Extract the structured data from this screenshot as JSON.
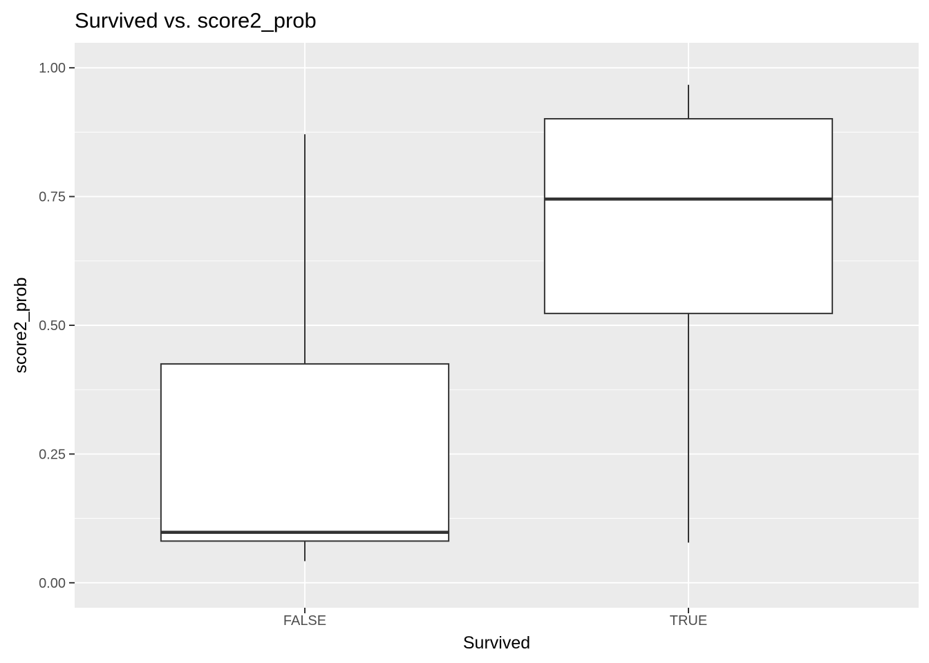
{
  "chart_data": {
    "type": "boxplot",
    "title": "Survived vs. score2_prob",
    "xlabel": "Survived",
    "ylabel": "score2_prob",
    "categories": [
      "FALSE",
      "TRUE"
    ],
    "boxes": [
      {
        "category": "FALSE",
        "whisker_low": 0.042,
        "q1": 0.081,
        "median": 0.098,
        "q3": 0.425,
        "whisker_high": 0.871
      },
      {
        "category": "TRUE",
        "whisker_low": 0.078,
        "q1": 0.523,
        "median": 0.745,
        "q3": 0.901,
        "whisker_high": 0.967
      }
    ],
    "ylim": [
      -0.0485,
      1.0485
    ],
    "y_ticks": [
      0,
      0.25,
      0.5,
      0.75,
      1
    ],
    "y_tick_labels": [
      "0.00",
      "0.25",
      "0.50",
      "0.75",
      "1.00"
    ],
    "grid": true,
    "colors": {
      "panel_background": "#ebebeb",
      "grid_major": "#ffffff",
      "box_fill": "#ffffff",
      "box_stroke": "#333333",
      "tick_text": "#4d4d4d",
      "tick_mark": "#333333"
    }
  }
}
